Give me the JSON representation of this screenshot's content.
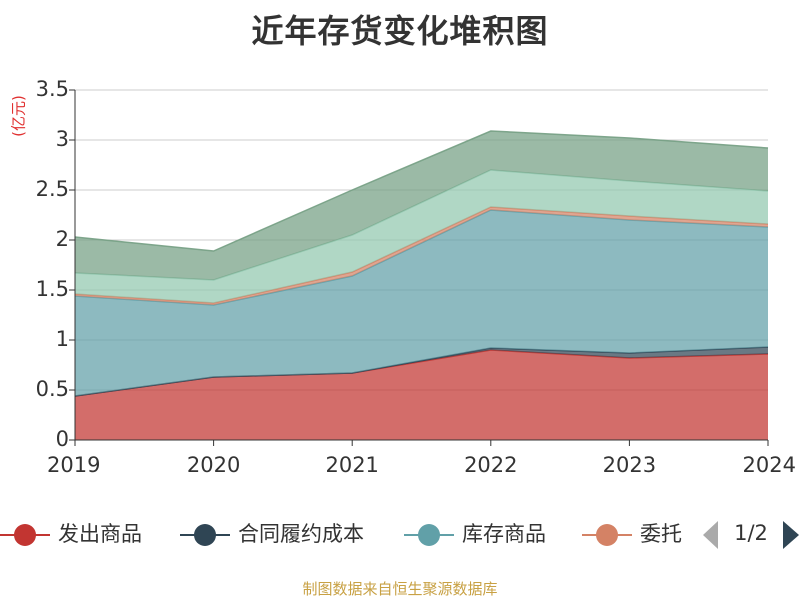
{
  "title": "近年存货变化堆积图",
  "source": "制图数据来自恒生聚源数据库",
  "legend": {
    "page": "1/2"
  },
  "chart_data": {
    "type": "area",
    "stacked": true,
    "unit": "(亿元)",
    "x": [
      "2019",
      "2020",
      "2021",
      "2022",
      "2023",
      "2024"
    ],
    "ylim": [
      0,
      3.5
    ],
    "yticks": [
      "0",
      "0.5",
      "1",
      "1.5",
      "2",
      "2.5",
      "3",
      "3.5"
    ],
    "ytick_values": [
      0,
      0.5,
      1,
      1.5,
      2,
      2.5,
      3,
      3.5
    ],
    "grid": true,
    "legend_position": "bottom",
    "series": [
      {
        "name": "发出商品",
        "color": "#c23531",
        "values": [
          0.44,
          0.63,
          0.67,
          0.9,
          0.82,
          0.86
        ]
      },
      {
        "name": "合同履约成本",
        "color": "#2f4554",
        "values": [
          0.0,
          0.0,
          0.0,
          0.02,
          0.05,
          0.07
        ]
      },
      {
        "name": "库存商品",
        "color": "#61a0a8",
        "values": [
          1.0,
          0.72,
          0.97,
          1.38,
          1.33,
          1.2
        ]
      },
      {
        "name": "委托",
        "color": "#d48265",
        "values": [
          0.02,
          0.02,
          0.04,
          0.03,
          0.04,
          0.03
        ]
      },
      {
        "name": "",
        "color": "#91c7ae",
        "values": [
          0.21,
          0.23,
          0.37,
          0.37,
          0.35,
          0.33
        ]
      },
      {
        "name": "",
        "color": "#749f83",
        "values": [
          0.36,
          0.29,
          0.45,
          0.39,
          0.43,
          0.43
        ]
      }
    ]
  }
}
